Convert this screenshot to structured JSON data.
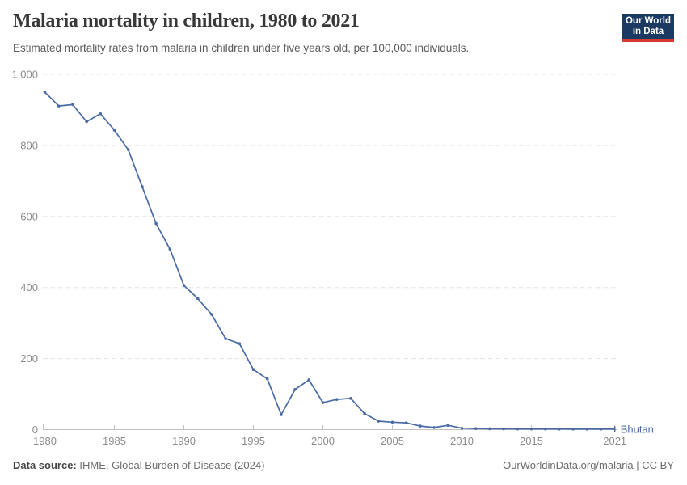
{
  "header": {
    "title": "Malaria mortality in children, 1980 to 2021",
    "subtitle": "Estimated mortality rates from malaria in children under five years old, per 100,000 individuals.",
    "logo_line1": "Our World",
    "logo_line2": "in Data",
    "logo_bg_color": "#1a3a62",
    "logo_stripe_color": "#d53a33"
  },
  "chart_data": {
    "type": "line",
    "title": "Malaria mortality in children, 1980 to 2021",
    "xlabel": "",
    "ylabel": "",
    "xlim": [
      1980,
      2021
    ],
    "ylim": [
      0,
      1000
    ],
    "x_ticks": [
      1980,
      1985,
      1990,
      1995,
      2000,
      2005,
      2010,
      2015,
      2021
    ],
    "y_ticks": [
      0,
      200,
      400,
      600,
      800,
      1000
    ],
    "grid": "horizontal-dashed",
    "legend_position": "end-of-line",
    "series": [
      {
        "name": "Bhutan",
        "color": "#4a6ba6",
        "x": [
          1980,
          1981,
          1982,
          1983,
          1984,
          1985,
          1986,
          1987,
          1988,
          1989,
          1990,
          1991,
          1992,
          1993,
          1994,
          1995,
          1996,
          1997,
          1998,
          1999,
          2000,
          2001,
          2002,
          2003,
          2004,
          2005,
          2006,
          2007,
          2008,
          2009,
          2010,
          2011,
          2012,
          2013,
          2014,
          2015,
          2016,
          2017,
          2018,
          2019,
          2020,
          2021
        ],
        "values": [
          950,
          911,
          915,
          867,
          889,
          843,
          788,
          684,
          580,
          508,
          406,
          369,
          324,
          256,
          242,
          169,
          143,
          42,
          113,
          140,
          76,
          85,
          88,
          45,
          24,
          21,
          19,
          10,
          6,
          12,
          4,
          3,
          2.5,
          2.2,
          2,
          2,
          1.9,
          1.8,
          1.7,
          1.6,
          1.5,
          1.5
        ]
      }
    ]
  },
  "footer": {
    "source_label": "Data source:",
    "source_rest": " IHME, Global Burden of Disease (2024)",
    "right_text": "OurWorldinData.org/malaria | CC BY"
  }
}
